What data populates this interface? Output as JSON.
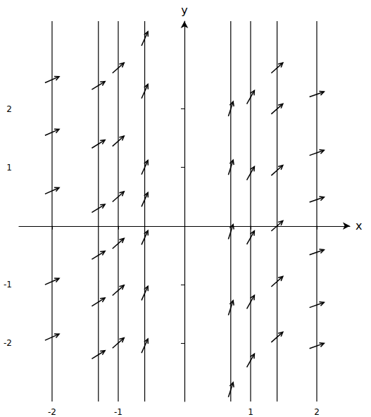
{
  "chart_data": {
    "type": "direction_field",
    "x_label": "x",
    "y_label": "y",
    "xlim": [
      -2.5,
      2.5
    ],
    "ylim": [
      -3,
      3.5
    ],
    "xticks": [
      -2,
      -1,
      1,
      2
    ],
    "yticks": [
      -2,
      -1,
      1,
      2
    ],
    "grid": false,
    "color": "#000000",
    "isoclines": [
      {
        "x": -2,
        "slope": 0.5,
        "y": [
          2.5,
          1.6,
          0.6,
          -0.95,
          -1.9
        ]
      },
      {
        "x": -1.3,
        "slope": 0.7,
        "y": [
          2.4,
          1.4,
          0.3,
          -0.5,
          -1.3,
          -2.2
        ]
      },
      {
        "x": -1,
        "slope": 1,
        "y": [
          2.7,
          1.45,
          0.5,
          -0.3,
          -1.1,
          -2.0
        ]
      },
      {
        "x": -0.6,
        "slope": 2.5,
        "y": [
          3.2,
          2.3,
          1.0,
          0.45,
          -0.2,
          -1.15,
          -2.05
        ]
      },
      {
        "x": 0.7,
        "slope": 3.5,
        "y": [
          2.0,
          1.0,
          -0.1,
          -1.4,
          -2.8
        ]
      },
      {
        "x": 1,
        "slope": 2,
        "y": [
          2.2,
          0.9,
          -0.2,
          -1.3,
          -2.3
        ]
      },
      {
        "x": 1.4,
        "slope": 1,
        "y": [
          2.7,
          2.0,
          0.95,
          0.0,
          -0.95,
          -1.9
        ]
      },
      {
        "x": 2,
        "slope": 0.4,
        "y": [
          2.25,
          1.25,
          0.45,
          -0.45,
          -1.35,
          -2.05
        ]
      }
    ]
  }
}
